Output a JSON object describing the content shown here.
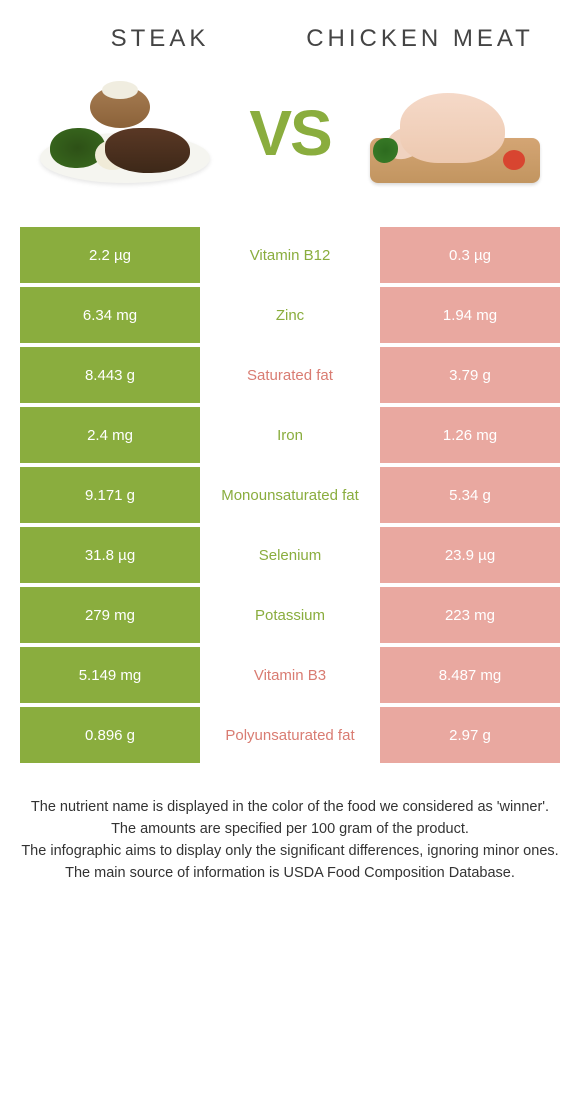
{
  "header": {
    "left_title": "STEAK",
    "right_title": "CHICKEN MEAT",
    "vs": "VS"
  },
  "colors": {
    "steak": "#8aad3e",
    "chicken": "#e9a8a0",
    "steak_text": "#8aad3e",
    "chicken_text": "#d97c72"
  },
  "table": {
    "rows": [
      {
        "left": "2.2 µg",
        "label": "Vitamin B12",
        "right": "0.3 µg",
        "winner": "left"
      },
      {
        "left": "6.34 mg",
        "label": "Zinc",
        "right": "1.94 mg",
        "winner": "left"
      },
      {
        "left": "8.443 g",
        "label": "Saturated fat",
        "right": "3.79 g",
        "winner": "right"
      },
      {
        "left": "2.4 mg",
        "label": "Iron",
        "right": "1.26 mg",
        "winner": "left"
      },
      {
        "left": "9.171 g",
        "label": "Monounsaturated fat",
        "right": "5.34 g",
        "winner": "left"
      },
      {
        "left": "31.8 µg",
        "label": "Selenium",
        "right": "23.9 µg",
        "winner": "left"
      },
      {
        "left": "279 mg",
        "label": "Potassium",
        "right": "223 mg",
        "winner": "left"
      },
      {
        "left": "5.149 mg",
        "label": "Vitamin B3",
        "right": "8.487 mg",
        "winner": "right"
      },
      {
        "left": "0.896 g",
        "label": "Polyunsaturated fat",
        "right": "2.97 g",
        "winner": "right"
      }
    ]
  },
  "footer": {
    "line1": "The nutrient name is displayed in the color of the food we considered as 'winner'.",
    "line2": "The amounts are specified per 100 gram of the product.",
    "line3": "The infographic aims to display only the significant differences, ignoring minor ones.",
    "line4": "The main source of information is USDA Food Composition Database."
  }
}
